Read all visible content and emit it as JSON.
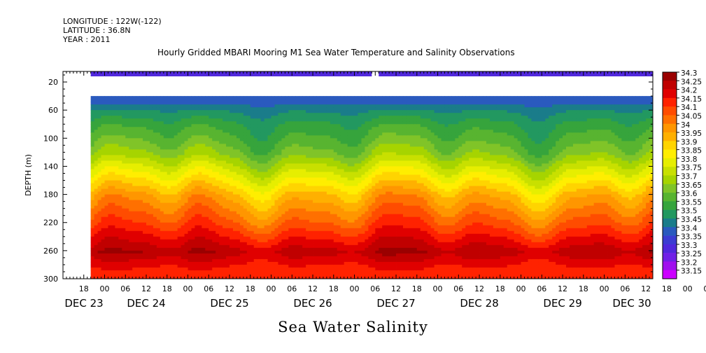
{
  "header": {
    "longitude": "LONGITUDE : 122W(-122)",
    "latitude": "LATITUDE : 36.8N",
    "year": "YEAR : 2011"
  },
  "chart_data": {
    "type": "heatmap",
    "title": "Hourly Gridded MBARI Mooring M1 Sea Water Temperature and Salinity Observations",
    "xlabel": "Sea Water Salinity",
    "ylabel": "DEPTH (m)",
    "ylim": [
      300,
      5
    ],
    "y_ticks": [
      20,
      60,
      100,
      140,
      180,
      220,
      260,
      300
    ],
    "x_hour_ticks": [
      "18",
      "00",
      "06",
      "12",
      "18",
      "00",
      "06",
      "12",
      "18",
      "00",
      "06",
      "12",
      "18",
      "00",
      "06",
      "12",
      "18",
      "00",
      "06",
      "12",
      "18",
      "00",
      "06",
      "12",
      "18",
      "00",
      "06",
      "12",
      "18",
      "00",
      "06",
      "12"
    ],
    "x_date_labels": [
      "DEC 23",
      "DEC 24",
      "DEC 25",
      "DEC 26",
      "DEC 27",
      "DEC 28",
      "DEC 29",
      "DEC 30"
    ],
    "x_range": [
      "2011-12-23T12:00",
      "2011-12-30T14:00"
    ],
    "data_start": "2011-12-23T20:00",
    "surface_gap": [
      "2011-12-27T05:00",
      "2011-12-27T07:00"
    ],
    "depths_m": [
      10,
      40,
      60,
      80,
      100,
      120,
      140,
      160,
      180,
      200,
      220,
      240,
      260,
      280,
      300
    ],
    "mean_profile": [
      33.3,
      33.4,
      33.5,
      33.57,
      33.62,
      33.68,
      33.78,
      33.88,
      33.98,
      34.05,
      34.12,
      34.2,
      34.28,
      34.2,
      34.15
    ],
    "colorbar": {
      "levels": [
        "34.3",
        "34.25",
        "34.2",
        "34.15",
        "34.1",
        "34.05",
        "34",
        "33.95",
        "33.9",
        "33.85",
        "33.8",
        "33.75",
        "33.7",
        "33.65",
        "33.6",
        "33.55",
        "33.5",
        "33.45",
        "33.4",
        "33.35",
        "33.3",
        "33.25",
        "33.2",
        "33.15"
      ],
      "colors": [
        "#9a0000",
        "#c00000",
        "#e00000",
        "#ff2200",
        "#ff4c00",
        "#ff7000",
        "#ff9600",
        "#ffb000",
        "#ffd400",
        "#ffee00",
        "#e6ee00",
        "#c8e000",
        "#a6d400",
        "#80c428",
        "#58b430",
        "#36a43c",
        "#229860",
        "#1a7c8a",
        "#2a5abe",
        "#3c3cd2",
        "#5028dc",
        "#7020e6",
        "#a010ee",
        "#cc00ff"
      ]
    }
  }
}
